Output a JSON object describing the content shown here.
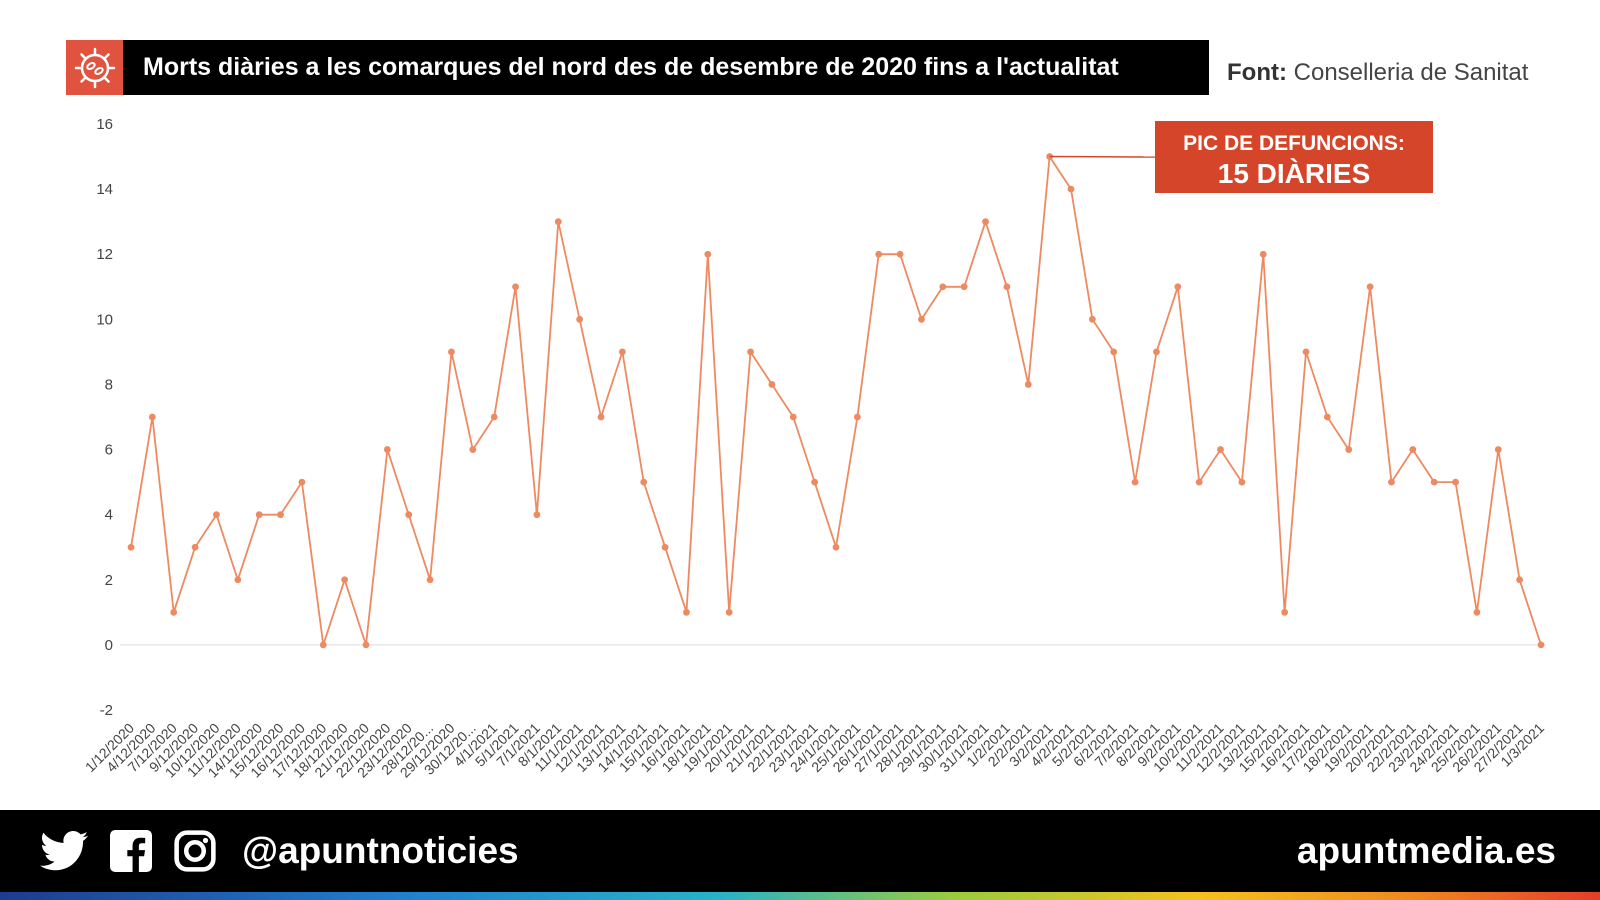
{
  "header": {
    "title": "Morts diàries a les comarques del nord des de desembre de 2020 fins a l'actualitat",
    "source_label": "Font:",
    "source_value": "Conselleria de Sanitat",
    "icon": "virus-icon"
  },
  "callout": {
    "line1": "PIC DE DEFUNCIONS:",
    "line2": "15 DIÀRIES"
  },
  "footer": {
    "handle": "@apuntnoticies",
    "site": "apuntmedia.es",
    "icons": [
      "twitter-icon",
      "facebook-icon",
      "instagram-icon"
    ]
  },
  "colors": {
    "line": "#ee8a61",
    "accent": "#e0533f",
    "callout": "#d4452a"
  },
  "chart_data": {
    "type": "line",
    "title": "Morts diàries a les comarques del nord des de desembre de 2020 fins a l'actualitat",
    "xlabel": "",
    "ylabel": "",
    "ylim": [
      -2,
      16
    ],
    "yticks": [
      16,
      14,
      12,
      10,
      8,
      6,
      4,
      2,
      0,
      -2
    ],
    "grid": false,
    "x": [
      "1/12/2020",
      "4/12/2020",
      "7/12/2020",
      "9/12/2020",
      "10/12/2020",
      "11/12/2020",
      "14/12/2020",
      "15/12/2020",
      "16/12/2020",
      "17/12/2020",
      "18/12/2020",
      "21/12/2020",
      "22/12/2020",
      "23/12/2020",
      "28/12/20...",
      "29/12/2020",
      "30/12/20...",
      "4/1/2021",
      "5/1/2021",
      "7/1/2021",
      "8/1/2021",
      "11/1/2021",
      "12/1/2021",
      "13/1/2021",
      "14/1/2021",
      "15/1/2021",
      "16/1/2021",
      "18/1/2021",
      "19/1/2021",
      "20/1/2021",
      "21/1/2021",
      "22/1/2021",
      "23/1/2021",
      "24/1/2021",
      "25/1/2021",
      "26/1/2021",
      "27/1/2021",
      "28/1/2021",
      "29/1/2021",
      "30/1/2021",
      "31/1/2021",
      "1/2/2021",
      "2/2/2021",
      "3/2/2021",
      "4/2/2021",
      "5/2/2021",
      "6/2/2021",
      "7/2/2021",
      "8/2/2021",
      "9/2/2021",
      "10/2/2021",
      "11/2/2021",
      "12/2/2021",
      "13/2/2021",
      "15/2/2021",
      "16/2/2021",
      "17/2/2021",
      "18/2/2021",
      "19/2/2021",
      "20/2/2021",
      "22/2/2021",
      "23/2/2021",
      "24/2/2021",
      "25/2/2021",
      "26/2/2021",
      "27/2/2021",
      "1/3/2021"
    ],
    "series": [
      {
        "values": [
          3,
          7,
          1,
          3,
          4,
          2,
          4,
          4,
          5,
          0,
          2,
          0,
          6,
          4,
          2,
          9,
          6,
          7,
          11,
          4,
          13,
          10,
          7,
          9,
          5,
          3,
          1,
          12,
          1,
          9,
          8,
          7,
          5,
          3,
          7,
          12,
          12,
          10,
          11,
          11,
          13,
          11,
          8,
          15,
          14,
          10,
          9,
          5,
          9,
          11,
          5,
          6,
          5,
          12,
          1,
          9,
          7,
          6,
          11,
          5,
          6,
          5,
          5,
          1,
          6,
          2,
          0
        ]
      }
    ]
  }
}
